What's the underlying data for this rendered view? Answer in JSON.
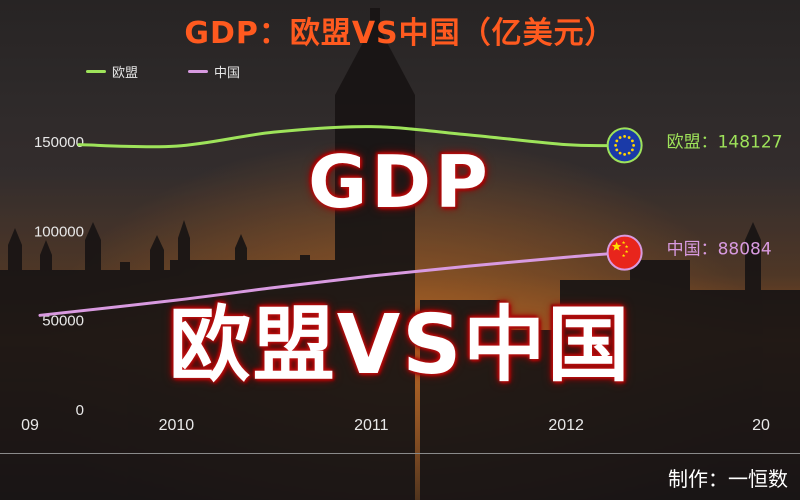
{
  "header": {
    "title": "GDP：欧盟VS中国（亿美元）"
  },
  "legend": [
    {
      "label": "欧盟",
      "color": "#9ee35a"
    },
    {
      "label": "中国",
      "color": "#d89ae0"
    }
  ],
  "overlay": {
    "line1": "GDP",
    "line2": "欧盟VS中国"
  },
  "credit": "制作：一恒数",
  "chart_data": {
    "type": "line",
    "title": "GDP：欧盟VS中国（亿美元）",
    "xlabel": "",
    "ylabel": "",
    "x_tick_labels": [
      "09",
      "2010",
      "2011",
      "2012",
      "20"
    ],
    "x_range": [
      2009.3,
      2013.2
    ],
    "y_tick_labels": [
      "0",
      "50000",
      "100000",
      "150000"
    ],
    "ylim": [
      0,
      160000
    ],
    "grid": false,
    "legend_position": "top-left",
    "series": [
      {
        "name": "欧盟",
        "color": "#9ee35a",
        "end_label": "欧盟：148127",
        "end_icon": "eu-flag-icon",
        "points": [
          {
            "x": 2009.5,
            "y": 148500
          },
          {
            "x": 2010.0,
            "y": 147700
          },
          {
            "x": 2010.5,
            "y": 155500
          },
          {
            "x": 2011.0,
            "y": 158600
          },
          {
            "x": 2011.5,
            "y": 154000
          },
          {
            "x": 2012.0,
            "y": 148500
          },
          {
            "x": 2012.3,
            "y": 148127
          }
        ]
      },
      {
        "name": "中国",
        "color": "#d89ae0",
        "end_label": "中国：88084",
        "end_icon": "china-flag-icon",
        "points": [
          {
            "x": 2009.3,
            "y": 53000
          },
          {
            "x": 2010.0,
            "y": 61500
          },
          {
            "x": 2010.5,
            "y": 68500
          },
          {
            "x": 2011.0,
            "y": 75000
          },
          {
            "x": 2011.5,
            "y": 80500
          },
          {
            "x": 2012.0,
            "y": 85500
          },
          {
            "x": 2012.3,
            "y": 88084
          }
        ]
      }
    ]
  }
}
